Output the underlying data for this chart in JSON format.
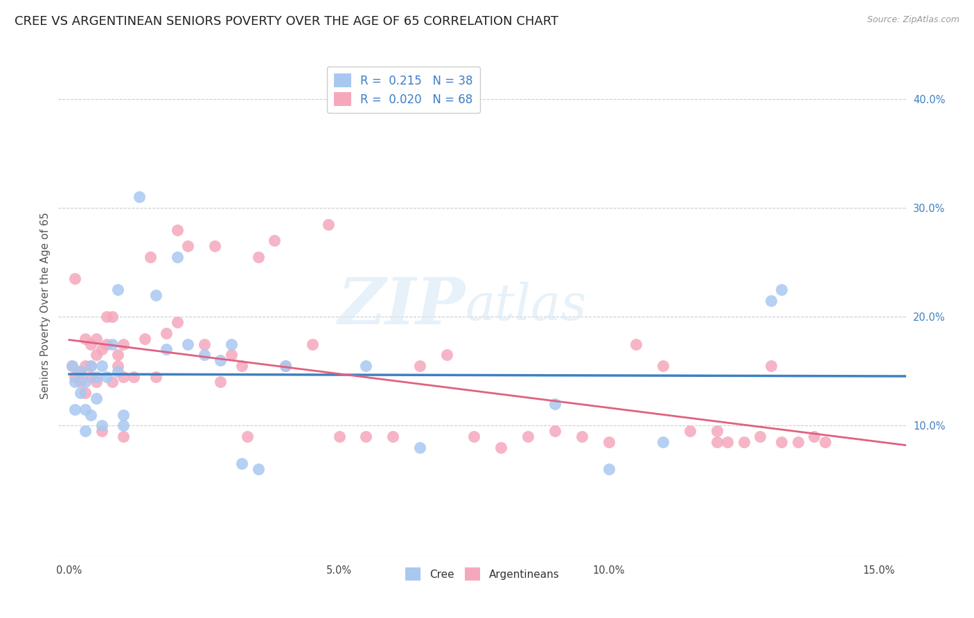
{
  "title": "CREE VS ARGENTINEAN SENIORS POVERTY OVER THE AGE OF 65 CORRELATION CHART",
  "source": "Source: ZipAtlas.com",
  "ylabel": "Seniors Poverty Over the Age of 65",
  "xlabel_ticks": [
    "0.0%",
    "5.0%",
    "10.0%",
    "15.0%"
  ],
  "xlabel_vals": [
    0.0,
    0.05,
    0.1,
    0.15
  ],
  "ylabel_ticks": [
    "10.0%",
    "20.0%",
    "30.0%",
    "40.0%"
  ],
  "ylabel_vals": [
    0.1,
    0.2,
    0.3,
    0.4
  ],
  "xlim": [
    -0.002,
    0.155
  ],
  "ylim": [
    -0.02,
    0.44
  ],
  "cree_color": "#A8C8F0",
  "arg_color": "#F5A8BC",
  "trend_cree_color": "#4080C0",
  "trend_arg_color": "#E06080",
  "cree_R": "0.215",
  "cree_N": "38",
  "arg_R": "0.020",
  "arg_N": "68",
  "legend_label_cree": "Cree",
  "legend_label_arg": "Argentineans",
  "watermark": "ZIPatlas",
  "cree_x": [
    0.0005,
    0.001,
    0.001,
    0.002,
    0.002,
    0.003,
    0.003,
    0.003,
    0.004,
    0.004,
    0.005,
    0.005,
    0.006,
    0.006,
    0.007,
    0.008,
    0.009,
    0.009,
    0.01,
    0.01,
    0.013,
    0.016,
    0.018,
    0.02,
    0.022,
    0.025,
    0.028,
    0.03,
    0.032,
    0.035,
    0.04,
    0.055,
    0.065,
    0.09,
    0.1,
    0.11,
    0.13,
    0.132
  ],
  "cree_y": [
    0.155,
    0.14,
    0.115,
    0.15,
    0.13,
    0.14,
    0.115,
    0.095,
    0.155,
    0.11,
    0.145,
    0.125,
    0.1,
    0.155,
    0.145,
    0.175,
    0.225,
    0.15,
    0.1,
    0.11,
    0.31,
    0.22,
    0.17,
    0.255,
    0.175,
    0.165,
    0.16,
    0.175,
    0.065,
    0.06,
    0.155,
    0.155,
    0.08,
    0.12,
    0.06,
    0.085,
    0.215,
    0.225
  ],
  "arg_x": [
    0.0005,
    0.001,
    0.001,
    0.002,
    0.002,
    0.003,
    0.003,
    0.003,
    0.004,
    0.004,
    0.004,
    0.005,
    0.005,
    0.005,
    0.006,
    0.006,
    0.007,
    0.007,
    0.008,
    0.008,
    0.009,
    0.009,
    0.01,
    0.01,
    0.01,
    0.012,
    0.014,
    0.015,
    0.016,
    0.018,
    0.02,
    0.02,
    0.022,
    0.025,
    0.027,
    0.028,
    0.03,
    0.032,
    0.033,
    0.035,
    0.038,
    0.04,
    0.045,
    0.048,
    0.05,
    0.055,
    0.06,
    0.065,
    0.07,
    0.075,
    0.08,
    0.085,
    0.09,
    0.095,
    0.1,
    0.105,
    0.11,
    0.115,
    0.12,
    0.12,
    0.122,
    0.125,
    0.128,
    0.13,
    0.132,
    0.135,
    0.138,
    0.14
  ],
  "arg_y": [
    0.155,
    0.235,
    0.145,
    0.15,
    0.14,
    0.18,
    0.155,
    0.13,
    0.175,
    0.155,
    0.145,
    0.18,
    0.165,
    0.14,
    0.17,
    0.095,
    0.2,
    0.175,
    0.2,
    0.14,
    0.165,
    0.155,
    0.175,
    0.145,
    0.09,
    0.145,
    0.18,
    0.255,
    0.145,
    0.185,
    0.28,
    0.195,
    0.265,
    0.175,
    0.265,
    0.14,
    0.165,
    0.155,
    0.09,
    0.255,
    0.27,
    0.155,
    0.175,
    0.285,
    0.09,
    0.09,
    0.09,
    0.155,
    0.165,
    0.09,
    0.08,
    0.09,
    0.095,
    0.09,
    0.085,
    0.175,
    0.155,
    0.095,
    0.095,
    0.085,
    0.085,
    0.085,
    0.09,
    0.155,
    0.085,
    0.085,
    0.09,
    0.085
  ],
  "background_color": "#ffffff",
  "grid_color": "#cccccc",
  "title_fontsize": 13,
  "axis_fontsize": 11,
  "tick_fontsize": 10.5
}
